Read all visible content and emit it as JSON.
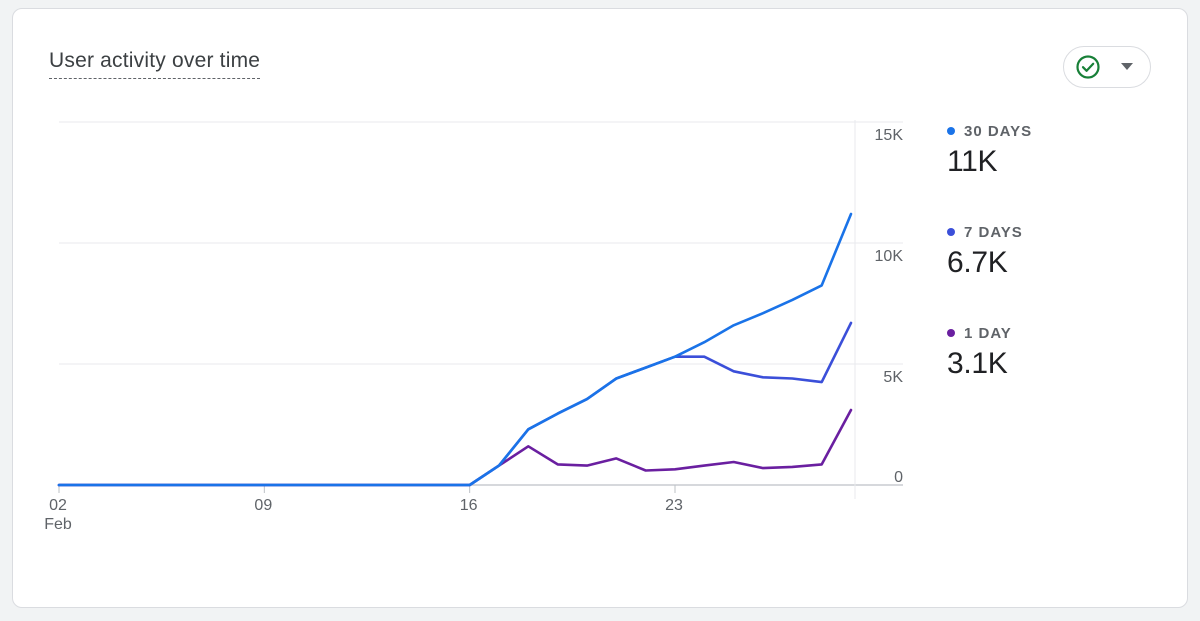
{
  "card": {
    "title": "User activity over time"
  },
  "status_button": {
    "icon": "check-circle-icon",
    "dropdown_icon": "caret-down-icon",
    "icon_color": "#188038"
  },
  "legend": [
    {
      "label": "30 DAYS",
      "value": "11K",
      "color": "#1a73e8"
    },
    {
      "label": "7 DAYS",
      "value": "6.7K",
      "color": "#3b4fd9"
    },
    {
      "label": "1 DAY",
      "value": "3.1K",
      "color": "#6a1fa0"
    }
  ],
  "chart_data": {
    "type": "line",
    "x": [
      "02",
      "03",
      "04",
      "05",
      "06",
      "07",
      "08",
      "09",
      "10",
      "11",
      "12",
      "13",
      "14",
      "15",
      "16",
      "17",
      "18",
      "19",
      "20",
      "21",
      "22",
      "23",
      "24",
      "25",
      "26",
      "27",
      "28",
      "29"
    ],
    "x_ticks": [
      {
        "index": 0,
        "label": "02",
        "sublabel": "Feb"
      },
      {
        "index": 7,
        "label": "09",
        "sublabel": ""
      },
      {
        "index": 14,
        "label": "16",
        "sublabel": ""
      },
      {
        "index": 21,
        "label": "23",
        "sublabel": ""
      }
    ],
    "y_ticks": [
      0,
      5000,
      10000,
      15000
    ],
    "y_tick_labels": [
      "0",
      "5K",
      "10K",
      "15K"
    ],
    "ylim": [
      0,
      15000
    ],
    "grid": true,
    "y_axis_position": "right",
    "legend_position": "right",
    "series": [
      {
        "name": "30 DAYS",
        "color": "#1a73e8",
        "values": [
          0,
          0,
          0,
          0,
          0,
          0,
          0,
          0,
          0,
          0,
          0,
          0,
          0,
          0,
          0,
          800,
          2300,
          2950,
          3550,
          4400,
          4850,
          5300,
          5900,
          6600,
          7100,
          7650,
          8250,
          11200
        ]
      },
      {
        "name": "7 DAYS",
        "color": "#3b4fd9",
        "values": [
          0,
          0,
          0,
          0,
          0,
          0,
          0,
          0,
          0,
          0,
          0,
          0,
          0,
          0,
          0,
          800,
          2300,
          2950,
          3550,
          4400,
          4850,
          5300,
          5300,
          4700,
          4450,
          4400,
          4250,
          6700
        ]
      },
      {
        "name": "1 DAY",
        "color": "#6a1fa0",
        "values": [
          0,
          0,
          0,
          0,
          0,
          0,
          0,
          0,
          0,
          0,
          0,
          0,
          0,
          0,
          0,
          800,
          1600,
          850,
          800,
          1100,
          600,
          650,
          800,
          950,
          700,
          750,
          850,
          3100
        ]
      }
    ]
  }
}
